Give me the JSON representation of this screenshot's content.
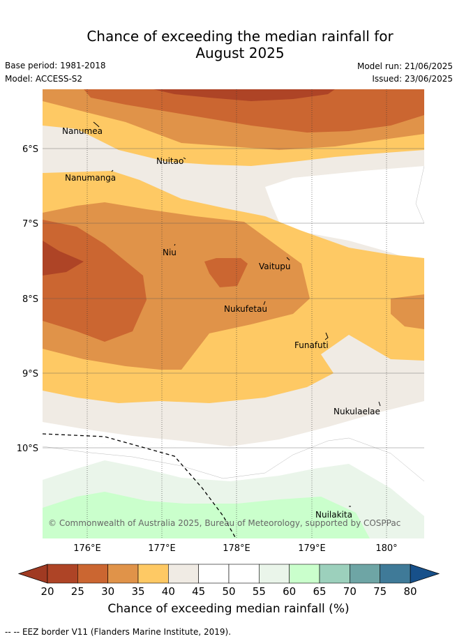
{
  "header": {
    "title_line1": "Chance of exceeding the median rainfall for",
    "title_line2": "August 2025",
    "base_period": "Base period: 1981-2018",
    "model": "Model: ACCESS-S2",
    "model_run": "Model run: 21/06/2025",
    "issued": "Issued: 23/06/2025"
  },
  "map": {
    "lon_ticks": [
      "176°E",
      "177°E",
      "178°E",
      "179°E",
      "180°"
    ],
    "lat_ticks": [
      "6°S",
      "7°S",
      "8°S",
      "9°S",
      "10°S"
    ],
    "places": [
      {
        "name": "Nanumea",
        "lon": 176.1,
        "lat": -5.69
      },
      {
        "name": "Nuitao",
        "lon": 177.3,
        "lat": -6.11
      },
      {
        "name": "Nanumanga",
        "lon": 176.3,
        "lat": -6.29
      },
      {
        "name": "Niu",
        "lon": 177.16,
        "lat": -7.28
      },
      {
        "name": "Vaitupu",
        "lon": 178.68,
        "lat": -7.48
      },
      {
        "name": "Nukufetau",
        "lon": 178.37,
        "lat": -8.03
      },
      {
        "name": "Funafuti",
        "lon": 179.2,
        "lat": -8.52
      },
      {
        "name": "Nukulaelae",
        "lon": 179.84,
        "lat": -9.38
      },
      {
        "name": "Nuilakita",
        "lon": 179.5,
        "lat": -10.75
      }
    ],
    "credit": "© Commonwealth of Australia 2025, Bureau of Meteorology, supported by COSPPac"
  },
  "colorbar": {
    "ticks": [
      "20",
      "25",
      "30",
      "35",
      "40",
      "45",
      "50",
      "55",
      "60",
      "65",
      "70",
      "75",
      "80"
    ],
    "colors": [
      "#ae4426",
      "#cb6631",
      "#e09349",
      "#fec964",
      "#f0ebe4",
      "#ffffff",
      "#ffffff",
      "#eaf5ea",
      "#caffcc",
      "#9cd0bc",
      "#6ea5a5",
      "#3f7a98"
    ],
    "under_color": "#a03a22",
    "over_color": "#17508a",
    "label": "Chance of exceeding median rainfall (%)"
  },
  "footer": {
    "legend_text": "-- -- EEZ border V11 (Flanders Marine Institute, 2019)."
  }
}
